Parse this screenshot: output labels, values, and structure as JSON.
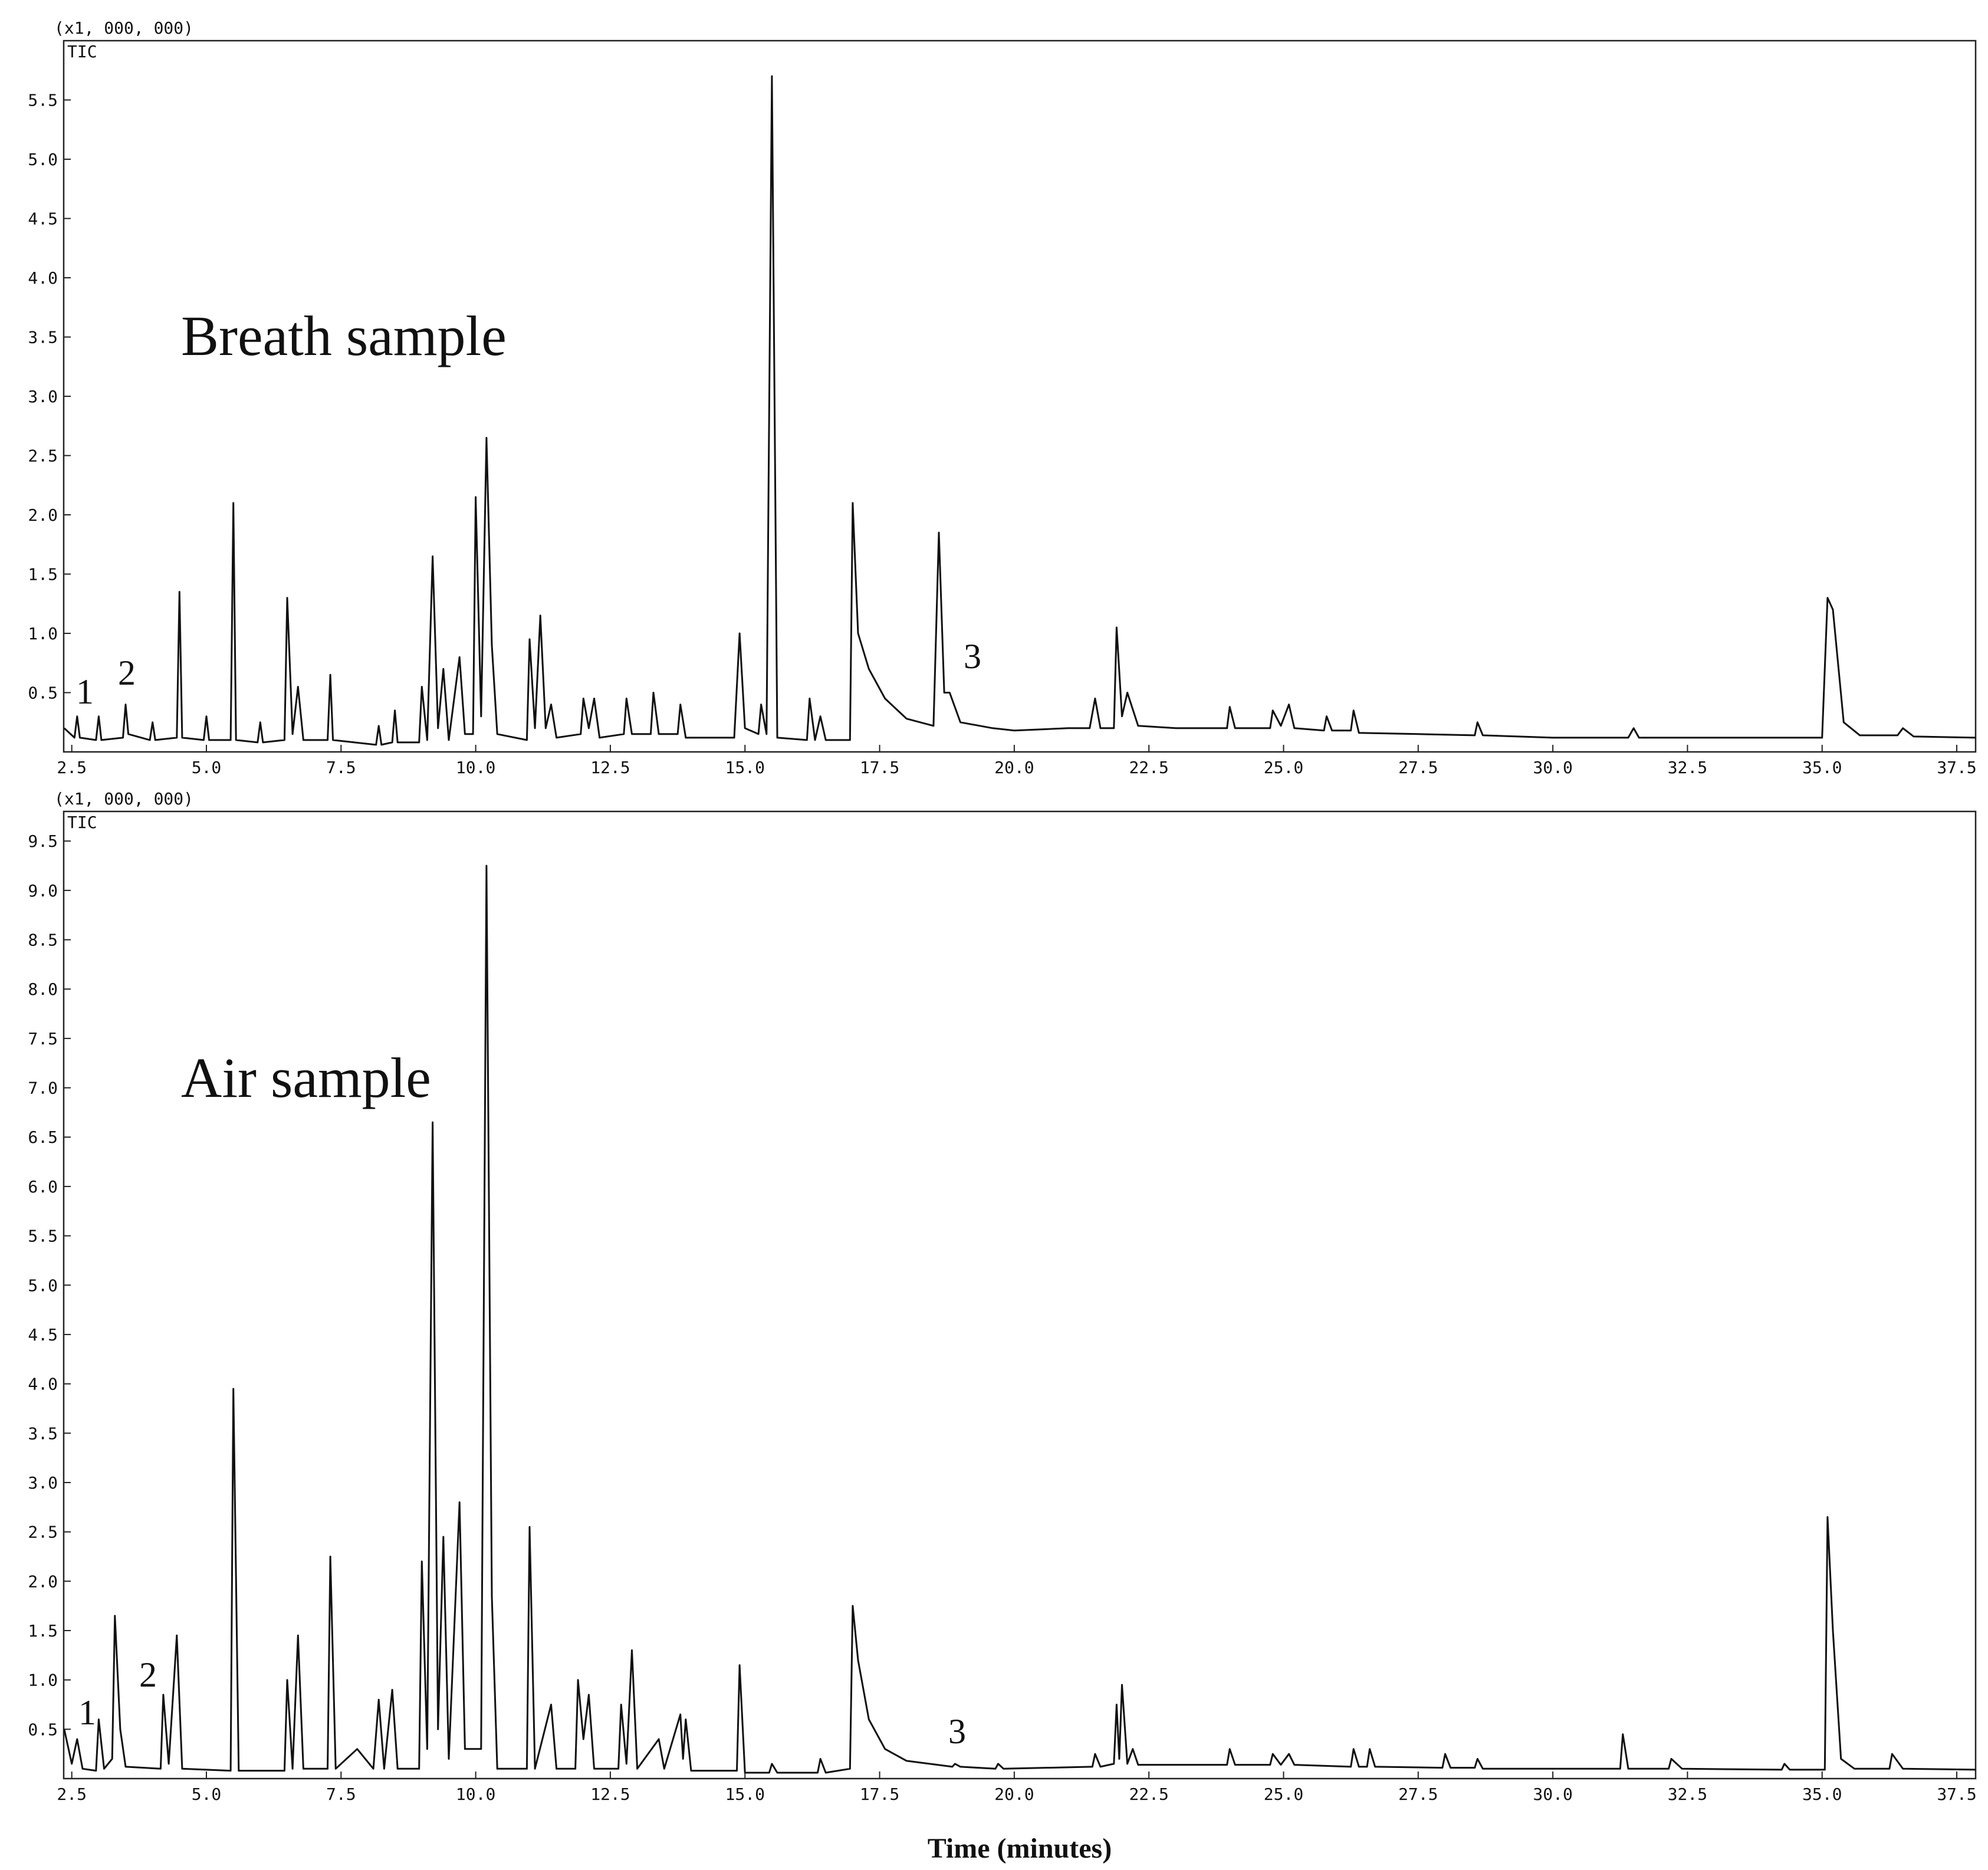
{
  "chart_data": [
    {
      "type": "line",
      "unit_label": "(x1, 000, 000)",
      "signal_label": "TIC",
      "annotations": [
        "Breath sample",
        "1",
        "2",
        "3"
      ],
      "color": "#111111",
      "grid": false,
      "xlim": [
        2.35,
        37.85
      ],
      "ylim": [
        0,
        6.0
      ],
      "xticks": [
        2.5,
        {
          "value": 5,
          "label": "5.0"
        },
        7.5,
        {
          "value": 10,
          "label": "10.0"
        },
        12.5,
        {
          "value": 15,
          "label": "15.0"
        },
        17.5,
        {
          "value": 20,
          "label": "20.0"
        },
        22.5,
        {
          "value": 25,
          "label": "25.0"
        },
        27.5,
        {
          "value": 30,
          "label": "30.0"
        },
        32.5,
        {
          "value": 35,
          "label": "35.0"
        },
        37.5
      ],
      "yticks": [
        0.5,
        {
          "value": 1,
          "label": "1.0"
        },
        1.5,
        {
          "value": 2,
          "label": "2.0"
        },
        2.5,
        {
          "value": 3,
          "label": "3.0"
        },
        3.5,
        {
          "value": 4,
          "label": "4.0"
        },
        4.5,
        {
          "value": 5,
          "label": "5.0"
        },
        5.5
      ],
      "x": [
        2.36,
        2.55,
        2.6,
        2.65,
        2.95,
        3.0,
        3.05,
        3.45,
        3.5,
        3.55,
        3.95,
        4.0,
        4.05,
        4.45,
        4.5,
        4.55,
        4.95,
        5.0,
        5.05,
        5.45,
        5.5,
        5.55,
        5.95,
        6.0,
        6.05,
        6.45,
        6.5,
        6.6,
        6.7,
        6.8,
        7.25,
        7.3,
        7.35,
        8.15,
        8.2,
        8.25,
        8.45,
        8.5,
        8.55,
        8.95,
        9.0,
        9.1,
        9.2,
        9.3,
        9.4,
        9.5,
        9.7,
        9.8,
        9.95,
        10.0,
        10.1,
        10.2,
        10.3,
        10.4,
        10.95,
        11.0,
        11.1,
        11.2,
        11.3,
        11.4,
        11.5,
        11.95,
        12.0,
        12.1,
        12.2,
        12.3,
        12.75,
        12.8,
        12.9,
        13.25,
        13.3,
        13.4,
        13.75,
        13.8,
        13.9,
        14.8,
        14.9,
        15.0,
        15.25,
        15.3,
        15.4,
        15.5,
        15.6,
        16.15,
        16.2,
        16.3,
        16.4,
        16.5,
        16.95,
        17.0,
        17.1,
        17.3,
        17.6,
        18.0,
        18.5,
        18.6,
        18.7,
        18.8,
        19.0,
        19.6,
        20.0,
        21.0,
        21.4,
        21.5,
        21.6,
        21.85,
        21.9,
        22.0,
        22.1,
        22.3,
        23.0,
        23.95,
        24.0,
        24.1,
        24.75,
        24.8,
        24.95,
        25.1,
        25.2,
        25.75,
        25.8,
        25.9,
        26.25,
        26.3,
        26.4,
        27.5,
        28.55,
        28.6,
        28.7,
        30.0,
        31.4,
        31.5,
        31.6,
        33.0,
        35.0,
        35.1,
        35.2,
        35.4,
        35.7,
        36.4,
        36.5,
        36.7,
        37.85
      ],
      "values": [
        0.2,
        0.12,
        0.3,
        0.12,
        0.1,
        0.3,
        0.1,
        0.12,
        0.4,
        0.15,
        0.1,
        0.25,
        0.1,
        0.12,
        1.35,
        0.12,
        0.1,
        0.3,
        0.1,
        0.1,
        2.1,
        0.1,
        0.08,
        0.25,
        0.08,
        0.1,
        1.3,
        0.15,
        0.55,
        0.1,
        0.1,
        0.65,
        0.1,
        0.06,
        0.22,
        0.06,
        0.08,
        0.35,
        0.08,
        0.08,
        0.55,
        0.1,
        1.65,
        0.2,
        0.7,
        0.1,
        0.8,
        0.15,
        0.15,
        2.15,
        0.3,
        2.65,
        0.9,
        0.15,
        0.1,
        0.95,
        0.2,
        1.15,
        0.2,
        0.4,
        0.12,
        0.15,
        0.45,
        0.2,
        0.45,
        0.12,
        0.15,
        0.45,
        0.15,
        0.15,
        0.5,
        0.15,
        0.15,
        0.4,
        0.12,
        0.12,
        1.0,
        0.2,
        0.15,
        0.4,
        0.15,
        5.7,
        0.12,
        0.1,
        0.45,
        0.1,
        0.3,
        0.1,
        0.1,
        2.1,
        1.0,
        0.7,
        0.45,
        0.28,
        0.22,
        1.85,
        0.5,
        0.5,
        0.25,
        0.2,
        0.18,
        0.2,
        0.2,
        0.45,
        0.2,
        0.2,
        1.05,
        0.3,
        0.5,
        0.22,
        0.2,
        0.2,
        0.38,
        0.2,
        0.2,
        0.35,
        0.22,
        0.4,
        0.2,
        0.18,
        0.3,
        0.18,
        0.18,
        0.35,
        0.16,
        0.15,
        0.14,
        0.25,
        0.14,
        0.12,
        0.12,
        0.2,
        0.12,
        0.12,
        0.12,
        1.3,
        1.2,
        0.25,
        0.14,
        0.14,
        0.2,
        0.13,
        0.12
      ]
    },
    {
      "type": "line",
      "unit_label": "(x1, 000, 000)",
      "signal_label": "TIC",
      "xlabel": "Time (minutes)",
      "annotations": [
        "Air sample",
        "1",
        "2",
        "3"
      ],
      "color": "#111111",
      "grid": false,
      "xlim": [
        2.35,
        37.85
      ],
      "ylim": [
        0,
        9.8
      ],
      "xticks": [
        2.5,
        {
          "value": 5,
          "label": "5.0"
        },
        7.5,
        {
          "value": 10,
          "label": "10.0"
        },
        12.5,
        {
          "value": 15,
          "label": "15.0"
        },
        17.5,
        {
          "value": 20,
          "label": "20.0"
        },
        22.5,
        {
          "value": 25,
          "label": "25.0"
        },
        27.5,
        {
          "value": 30,
          "label": "30.0"
        },
        32.5,
        {
          "value": 35,
          "label": "35.0"
        },
        37.5
      ],
      "yticks": [
        0.5,
        {
          "value": 1,
          "label": "1.0"
        },
        1.5,
        {
          "value": 2,
          "label": "2.0"
        },
        2.5,
        {
          "value": 3,
          "label": "3.0"
        },
        3.5,
        {
          "value": 4,
          "label": "4.0"
        },
        4.5,
        {
          "value": 5,
          "label": "5.0"
        },
        5.5,
        {
          "value": 6,
          "label": "6.0"
        },
        6.5,
        {
          "value": 7,
          "label": "7.0"
        },
        7.5,
        {
          "value": 8,
          "label": "8.0"
        },
        8.5,
        {
          "value": 9,
          "label": "9.0"
        },
        9.5
      ],
      "x": [
        2.36,
        2.5,
        2.6,
        2.7,
        2.95,
        3.0,
        3.1,
        3.25,
        3.3,
        3.4,
        3.5,
        4.15,
        4.2,
        4.3,
        4.45,
        4.55,
        5.45,
        5.5,
        5.6,
        6.45,
        6.5,
        6.6,
        6.7,
        6.8,
        7.25,
        7.3,
        7.4,
        7.8,
        8.1,
        8.2,
        8.3,
        8.45,
        8.55,
        8.95,
        9.0,
        9.1,
        9.2,
        9.3,
        9.4,
        9.5,
        9.7,
        9.8,
        10.1,
        10.2,
        10.3,
        10.4,
        10.95,
        11.0,
        11.1,
        11.4,
        11.5,
        11.85,
        11.9,
        12.0,
        12.1,
        12.2,
        12.65,
        12.7,
        12.8,
        12.9,
        13.0,
        13.4,
        13.5,
        13.8,
        13.85,
        13.9,
        14.0,
        14.85,
        14.9,
        15.0,
        15.45,
        15.5,
        15.6,
        16.35,
        16.4,
        16.5,
        16.95,
        17.0,
        17.1,
        17.3,
        17.6,
        18.0,
        18.85,
        18.9,
        19.0,
        19.65,
        19.7,
        19.8,
        21.45,
        21.5,
        21.6,
        21.85,
        21.9,
        21.95,
        22.0,
        22.1,
        22.2,
        22.3,
        23.95,
        24.0,
        24.1,
        24.75,
        24.8,
        24.95,
        25.1,
        25.2,
        26.25,
        26.3,
        26.4,
        26.55,
        26.6,
        26.7,
        27.95,
        28.0,
        28.1,
        28.55,
        28.6,
        28.7,
        31.25,
        31.3,
        31.4,
        32.15,
        32.2,
        32.4,
        34.25,
        34.3,
        34.4,
        35.05,
        35.1,
        35.2,
        35.35,
        35.6,
        36.25,
        36.3,
        36.5,
        37.85
      ],
      "values": [
        0.5,
        0.15,
        0.4,
        0.1,
        0.08,
        0.6,
        0.1,
        0.2,
        1.65,
        0.5,
        0.12,
        0.1,
        0.85,
        0.15,
        1.45,
        0.1,
        0.08,
        3.95,
        0.08,
        0.08,
        1.0,
        0.1,
        1.45,
        0.1,
        0.1,
        2.25,
        0.1,
        0.3,
        0.1,
        0.8,
        0.1,
        0.9,
        0.1,
        0.1,
        2.2,
        0.3,
        6.65,
        0.5,
        2.45,
        0.2,
        2.8,
        0.3,
        0.3,
        9.25,
        1.85,
        0.1,
        0.1,
        2.55,
        0.1,
        0.75,
        0.1,
        0.1,
        1.0,
        0.4,
        0.85,
        0.1,
        0.1,
        0.75,
        0.15,
        1.3,
        0.1,
        0.4,
        0.1,
        0.65,
        0.2,
        0.6,
        0.08,
        0.08,
        1.15,
        0.06,
        0.06,
        0.15,
        0.06,
        0.06,
        0.2,
        0.06,
        0.1,
        1.75,
        1.2,
        0.6,
        0.3,
        0.18,
        0.12,
        0.15,
        0.12,
        0.1,
        0.15,
        0.1,
        0.12,
        0.25,
        0.12,
        0.15,
        0.75,
        0.2,
        0.95,
        0.15,
        0.3,
        0.14,
        0.14,
        0.3,
        0.14,
        0.14,
        0.25,
        0.14,
        0.25,
        0.14,
        0.12,
        0.3,
        0.12,
        0.12,
        0.3,
        0.12,
        0.11,
        0.25,
        0.11,
        0.11,
        0.2,
        0.1,
        0.1,
        0.45,
        0.1,
        0.1,
        0.2,
        0.1,
        0.09,
        0.15,
        0.09,
        0.09,
        2.65,
        1.5,
        0.2,
        0.1,
        0.1,
        0.25,
        0.1,
        0.09
      ]
    }
  ]
}
